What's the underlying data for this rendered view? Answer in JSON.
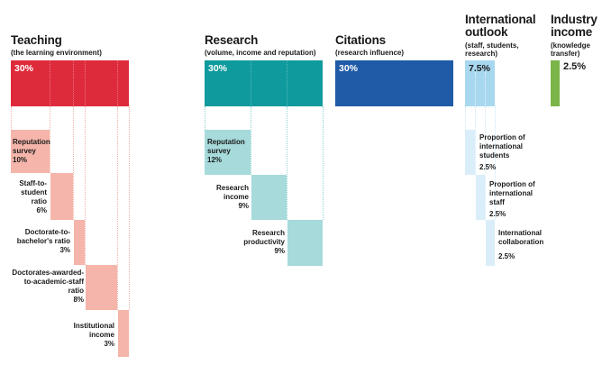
{
  "colors": {
    "teaching": "#de2b3c",
    "teaching_light": "#f5b5aa",
    "research": "#0f9a9d",
    "research_light": "#a6dadb",
    "citations": "#1f5ba6",
    "international": "#a8d8f0",
    "international_light": "#daeefa",
    "industry": "#7bb449"
  },
  "pillars": [
    {
      "key": "teaching",
      "title": "Teaching",
      "subtitle": "(the learning environment)",
      "pct": "30%",
      "weight": 30
    },
    {
      "key": "research",
      "title": "Research",
      "subtitle": "(volume, income and reputation)",
      "pct": "30%",
      "weight": 30
    },
    {
      "key": "citations",
      "title": "Citations",
      "subtitle": "(research influence)",
      "pct": "30%",
      "weight": 30
    },
    {
      "key": "international",
      "title_lines": [
        "International",
        "outlook"
      ],
      "subtitle_lines": [
        "(staff, students,",
        "research)"
      ],
      "pct": "7.5%",
      "weight": 7.5
    },
    {
      "key": "industry",
      "title_lines": [
        "Industry",
        "income"
      ],
      "subtitle_lines": [
        "(knowledge",
        "transfer)"
      ],
      "pct": "2.5%",
      "weight": 2.5
    }
  ],
  "teaching_items": [
    {
      "lines": [
        "Reputation",
        "survey"
      ],
      "pct": "10%",
      "weight": 10
    },
    {
      "lines": [
        "Staff-to-",
        "student",
        "ratio"
      ],
      "pct": "6%",
      "weight": 6
    },
    {
      "lines": [
        "Doctorate-to-",
        "bachelor's ratio"
      ],
      "pct": "3%",
      "weight": 3
    },
    {
      "lines": [
        "Doctorates-awarded-",
        "to-academic-staff",
        "ratio"
      ],
      "pct": "8%",
      "weight": 8
    },
    {
      "lines": [
        "Institutional",
        "income"
      ],
      "pct": "3%",
      "weight": 3
    }
  ],
  "research_items": [
    {
      "lines": [
        "Reputation",
        "survey"
      ],
      "pct": "12%",
      "weight": 12
    },
    {
      "lines": [
        "Research",
        "income"
      ],
      "pct": "9%",
      "weight": 9
    },
    {
      "lines": [
        "Research",
        "productivity"
      ],
      "pct": "9%",
      "weight": 9
    }
  ],
  "international_items": [
    {
      "lines": [
        "Proportion of",
        "international",
        "students"
      ],
      "pct": "2.5%",
      "weight": 2.5
    },
    {
      "lines": [
        "Proportion of",
        "international",
        "staff"
      ],
      "pct": "2.5%",
      "weight": 2.5
    },
    {
      "lines": [
        "International",
        "collaboration"
      ],
      "pct": "2.5%",
      "weight": 2.5
    }
  ]
}
